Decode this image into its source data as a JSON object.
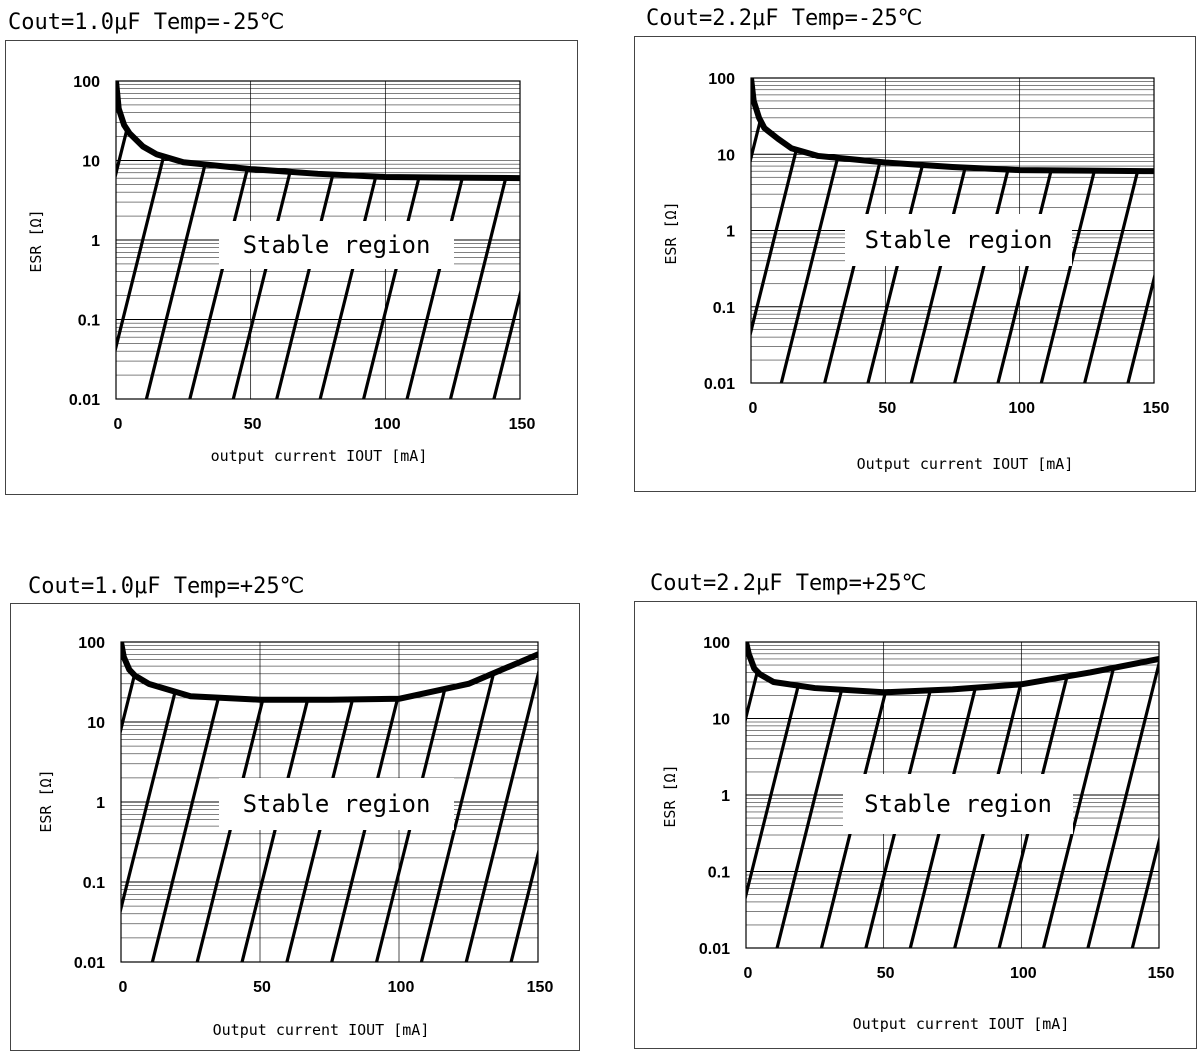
{
  "chart_data": [
    {
      "type": "line",
      "title": "Cout=1.0μF  Temp=-25℃",
      "xlabel": "output current IOUT [mA]",
      "ylabel": "ESR [Ω]",
      "xlim": [
        0,
        150
      ],
      "ylim": [
        0.01,
        100
      ],
      "yscale": "log",
      "xticks": [
        "0",
        "50",
        "100",
        "150"
      ],
      "yticks": [
        "100",
        "10",
        "1",
        "0.1",
        "0.01"
      ],
      "grid": true,
      "region_label": "Stable region",
      "series": [
        {
          "x": [
            0,
            1,
            3,
            5,
            10,
            15,
            25,
            50,
            75,
            100,
            125,
            150
          ],
          "y": [
            100,
            45,
            28,
            22,
            15,
            12,
            9.5,
            7.8,
            6.8,
            6.2,
            6.1,
            6.0
          ]
        }
      ]
    },
    {
      "type": "line",
      "title": "Cout=2.2μF  Temp=-25℃",
      "xlabel": "Output current IOUT [mA]",
      "ylabel": "ESR [Ω]",
      "xlim": [
        0,
        150
      ],
      "ylim": [
        0.01,
        100
      ],
      "yscale": "log",
      "xticks": [
        "0",
        "50",
        "100",
        "150"
      ],
      "yticks": [
        "100",
        "10",
        "1",
        "0.1",
        "0.01"
      ],
      "grid": true,
      "region_label": "Stable region",
      "series": [
        {
          "x": [
            0,
            1,
            3,
            5,
            10,
            15,
            25,
            50,
            75,
            100,
            125,
            150
          ],
          "y": [
            100,
            50,
            30,
            22,
            16,
            12,
            9.5,
            7.8,
            6.8,
            6.2,
            6.1,
            6.0
          ]
        }
      ]
    },
    {
      "type": "line",
      "title": "Cout=1.0μF  Temp=+25℃",
      "xlabel": "Output current IOUT [mA]",
      "ylabel": "ESR [Ω]",
      "xlim": [
        0,
        150
      ],
      "ylim": [
        0.01,
        100
      ],
      "yscale": "log",
      "xticks": [
        "0",
        "50",
        "100",
        "150"
      ],
      "yticks": [
        "100",
        "10",
        "1",
        "0.1",
        "0.01"
      ],
      "grid": true,
      "region_label": "Stable region",
      "series": [
        {
          "x": [
            0,
            1,
            3,
            5,
            10,
            25,
            50,
            75,
            100,
            125,
            150
          ],
          "y": [
            100,
            65,
            45,
            38,
            30,
            21,
            19,
            19,
            19.5,
            30,
            70
          ]
        }
      ]
    },
    {
      "type": "line",
      "title": "Cout=2.2μF  Temp=+25℃",
      "xlabel": "Output current IOUT [mA]",
      "ylabel": "ESR [Ω]",
      "xlim": [
        0,
        150
      ],
      "ylim": [
        0.01,
        100
      ],
      "yscale": "log",
      "xticks": [
        "0",
        "50",
        "100",
        "150"
      ],
      "yticks": [
        "100",
        "10",
        "1",
        "0.1",
        "0.01"
      ],
      "grid": true,
      "region_label": "Stable region",
      "series": [
        {
          "x": [
            0,
            1,
            3,
            5,
            10,
            25,
            50,
            75,
            100,
            125,
            150
          ],
          "y": [
            100,
            70,
            45,
            38,
            30,
            25,
            22,
            24,
            28,
            40,
            60
          ]
        }
      ]
    }
  ]
}
